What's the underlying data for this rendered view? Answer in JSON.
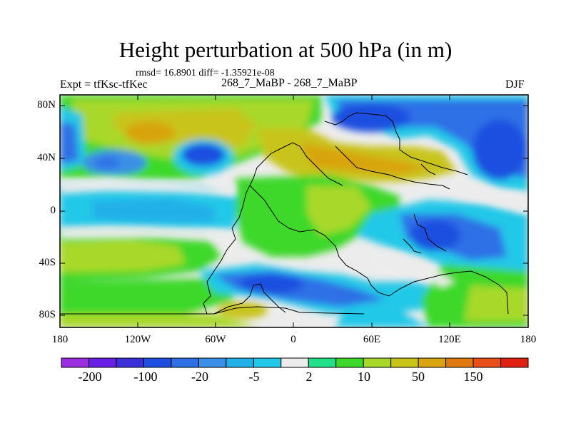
{
  "title": "Height perturbation at 500 hPa (in m)",
  "stats": "rmsd= 16.8901 diff= -1.35921e-08",
  "left_label": "Expt = tfKsc-tfKec",
  "center_label": "268_7_MaBP - 268_7_MaBP",
  "right_label": "DJF",
  "lat_labels": [
    "80N",
    "40N",
    "0",
    "40S",
    "80S"
  ],
  "lon_labels": [
    "180",
    "120W",
    "60W",
    "0",
    "60E",
    "120E",
    "180"
  ],
  "colorbar": {
    "colors": [
      "#9a2ee0",
      "#6a1fe6",
      "#3a2fd8",
      "#1f4fe0",
      "#2f6fe6",
      "#3a90e6",
      "#22b0e8",
      "#22c8e8",
      "#ececec",
      "#22e08a",
      "#3ed82a",
      "#a8d82a",
      "#c8c41a",
      "#d8a410",
      "#e07a10",
      "#e85018",
      "#e02010"
    ],
    "labels": [
      "-200",
      "-100",
      "-20",
      "-5",
      "2",
      "10",
      "50",
      "150"
    ]
  }
}
